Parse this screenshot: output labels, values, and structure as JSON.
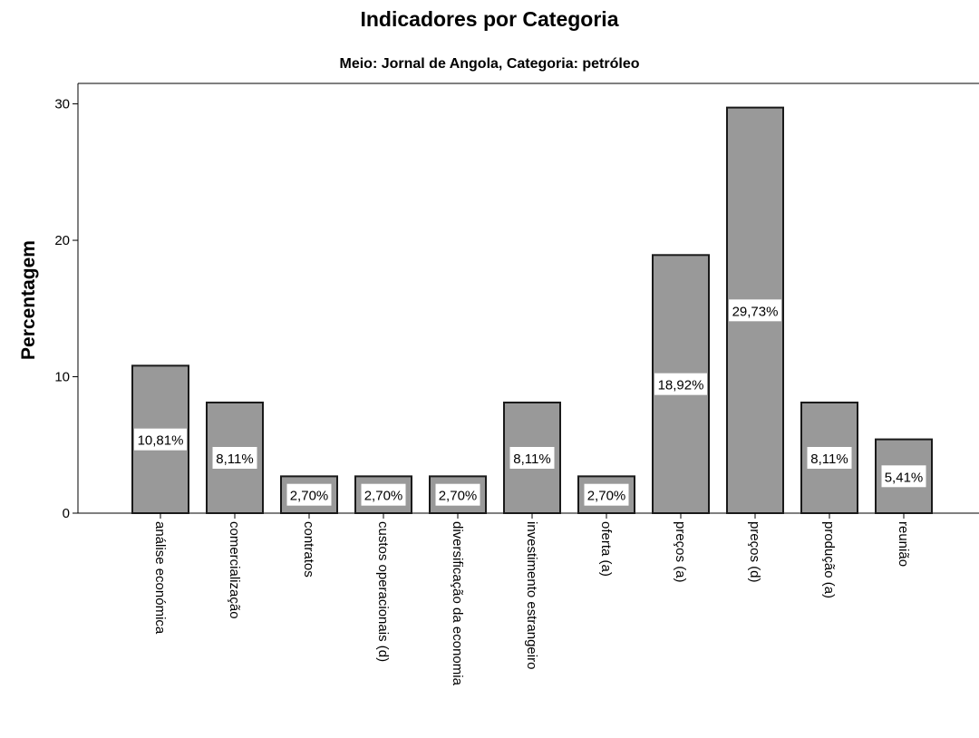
{
  "chart_data": {
    "type": "bar",
    "title": "Indicadores por Categoria",
    "subtitle": "Meio: Jornal de Angola, Categoria: petróleo",
    "xlabel": "",
    "ylabel": "Percentagem",
    "ylim": [
      0,
      31.5
    ],
    "yticks": [
      0,
      10,
      20,
      30
    ],
    "grid": false,
    "categories": [
      "análise económica",
      "comercialização",
      "contratos",
      "custos operacionais (d)",
      "diversificação da economia",
      "investimento estrangeiro",
      "oferta (a)",
      "preços (a)",
      "preços (d)",
      "produção (a)",
      "reunião"
    ],
    "values": [
      10.81,
      8.11,
      2.7,
      2.7,
      2.7,
      8.11,
      2.7,
      18.92,
      29.73,
      8.11,
      5.41
    ],
    "data_labels": [
      "10,81%",
      "8,11%",
      "2,70%",
      "2,70%",
      "2,70%",
      "8,11%",
      "2,70%",
      "18,92%",
      "29,73%",
      "8,11%",
      "5,41%"
    ],
    "colors": {
      "bar": "#999999",
      "bar_stroke": "#1a1a1a",
      "axis": "#000000",
      "label_bg": "#ffffff"
    }
  }
}
